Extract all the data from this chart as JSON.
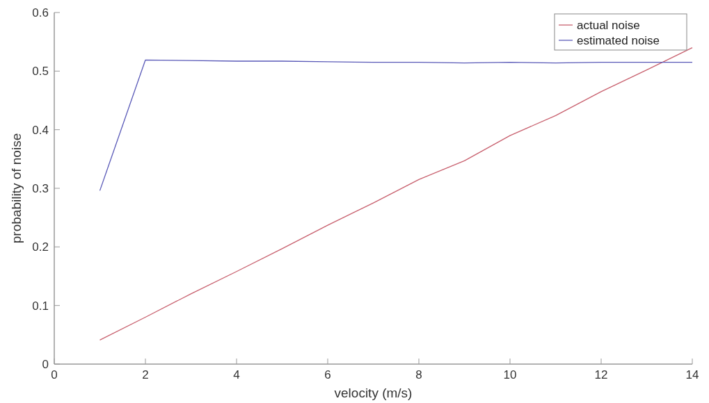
{
  "chart_data": {
    "type": "line",
    "xlabel": "velocity (m/s)",
    "ylabel": "probability of noise",
    "x": [
      1,
      2,
      3,
      4,
      5,
      6,
      7,
      8,
      9,
      10,
      11,
      12,
      13,
      14
    ],
    "series": [
      {
        "name": "actual noise",
        "color": "#c8606e",
        "values": [
          0.041,
          0.08,
          0.12,
          0.158,
          0.197,
          0.237,
          0.275,
          0.315,
          0.347,
          0.39,
          0.424,
          0.465,
          0.502,
          0.54
        ]
      },
      {
        "name": "estimated noise",
        "color": "#5a5ab8",
        "values": [
          0.296,
          0.519,
          0.518,
          0.517,
          0.517,
          0.516,
          0.515,
          0.515,
          0.514,
          0.515,
          0.514,
          0.515,
          0.515,
          0.515
        ]
      }
    ],
    "xlim": [
      0,
      14
    ],
    "xticks": [
      0,
      2,
      4,
      6,
      8,
      10,
      12,
      14
    ],
    "ylim": [
      0,
      0.6
    ],
    "yticks": [
      0,
      0.1,
      0.2,
      0.3,
      0.4,
      0.5,
      0.6
    ],
    "grid": false,
    "legend": "top right",
    "marker": "none",
    "line_style": "solid"
  }
}
